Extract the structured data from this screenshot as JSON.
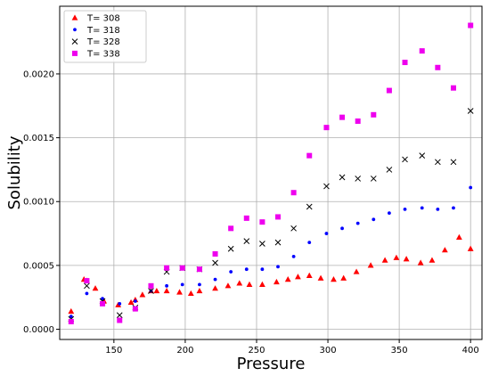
{
  "chart_data": {
    "type": "scatter",
    "title": "",
    "xlabel": "Pressure",
    "ylabel": "Solubility",
    "xlim": [
      112,
      408
    ],
    "ylim": [
      -8e-05,
      0.00253
    ],
    "xticks": [
      150,
      200,
      250,
      300,
      350,
      400
    ],
    "xtick_labels": [
      "150",
      "200",
      "250",
      "300",
      "350",
      "400"
    ],
    "yticks": [
      0.0,
      0.0005,
      0.001,
      0.0015,
      0.002
    ],
    "ytick_labels": [
      "0.0000",
      "0.0005",
      "0.0010",
      "0.0015",
      "0.0020"
    ],
    "grid": true,
    "legend_position": "top-left",
    "series": [
      {
        "name": "T= 308",
        "marker": "triangle",
        "color": "#ff0000",
        "points": [
          [
            120,
            0.00014
          ],
          [
            129,
            0.00039
          ],
          [
            131,
            0.00038
          ],
          [
            137,
            0.00032
          ],
          [
            143,
            0.00022
          ],
          [
            153,
            0.00019
          ],
          [
            162,
            0.00021
          ],
          [
            165,
            0.00023
          ],
          [
            170,
            0.00027
          ],
          [
            176,
            0.0003
          ],
          [
            180,
            0.0003
          ],
          [
            187,
            0.0003
          ],
          [
            196,
            0.00029
          ],
          [
            204,
            0.00028
          ],
          [
            210,
            0.0003
          ],
          [
            221,
            0.00032
          ],
          [
            230,
            0.00034
          ],
          [
            238,
            0.00036
          ],
          [
            245,
            0.00035
          ],
          [
            254,
            0.00035
          ],
          [
            264,
            0.00037
          ],
          [
            272,
            0.00039
          ],
          [
            279,
            0.00041
          ],
          [
            287,
            0.00042
          ],
          [
            295,
            0.0004
          ],
          [
            304,
            0.00039
          ],
          [
            311,
            0.0004
          ],
          [
            320,
            0.00045
          ],
          [
            330,
            0.0005
          ],
          [
            340,
            0.00054
          ],
          [
            348,
            0.00056
          ],
          [
            355,
            0.00055
          ],
          [
            365,
            0.00052
          ],
          [
            373,
            0.00054
          ],
          [
            382,
            0.00062
          ],
          [
            392,
            0.00072
          ],
          [
            400,
            0.00063
          ]
        ]
      },
      {
        "name": "T= 318",
        "marker": "dot",
        "color": "#0000ff",
        "points": [
          [
            120,
            0.0001
          ],
          [
            131,
            0.00028
          ],
          [
            142,
            0.00024
          ],
          [
            154,
            0.0002
          ],
          [
            165,
            0.00022
          ],
          [
            176,
            0.0003
          ],
          [
            187,
            0.00034
          ],
          [
            198,
            0.00035
          ],
          [
            210,
            0.00035
          ],
          [
            221,
            0.00039
          ],
          [
            232,
            0.00045
          ],
          [
            243,
            0.00047
          ],
          [
            254,
            0.00047
          ],
          [
            265,
            0.00049
          ],
          [
            276,
            0.00057
          ],
          [
            287,
            0.00068
          ],
          [
            299,
            0.00075
          ],
          [
            310,
            0.00079
          ],
          [
            321,
            0.00083
          ],
          [
            332,
            0.00086
          ],
          [
            343,
            0.00091
          ],
          [
            354,
            0.00094
          ],
          [
            366,
            0.00095
          ],
          [
            377,
            0.00094
          ],
          [
            388,
            0.00095
          ],
          [
            400,
            0.00111
          ]
        ]
      },
      {
        "name": "T= 328",
        "marker": "x",
        "color": "#000000",
        "points": [
          [
            120,
            8e-05
          ],
          [
            131,
            0.00034
          ],
          [
            142,
            0.00022
          ],
          [
            154,
            0.00011
          ],
          [
            165,
            0.00017
          ],
          [
            176,
            0.0003
          ],
          [
            187,
            0.00045
          ],
          [
            198,
            0.00048
          ],
          [
            210,
            0.00047
          ],
          [
            221,
            0.00052
          ],
          [
            232,
            0.00063
          ],
          [
            243,
            0.00069
          ],
          [
            254,
            0.00067
          ],
          [
            265,
            0.00068
          ],
          [
            276,
            0.00079
          ],
          [
            287,
            0.00096
          ],
          [
            299,
            0.00112
          ],
          [
            310,
            0.00119
          ],
          [
            321,
            0.00118
          ],
          [
            332,
            0.00118
          ],
          [
            343,
            0.00125
          ],
          [
            354,
            0.00133
          ],
          [
            366,
            0.00136
          ],
          [
            377,
            0.00131
          ],
          [
            388,
            0.00131
          ],
          [
            400,
            0.00171
          ]
        ]
      },
      {
        "name": "T= 338",
        "marker": "square",
        "color": "#ee00ee",
        "points": [
          [
            120,
            6e-05
          ],
          [
            131,
            0.00038
          ],
          [
            142,
            0.0002
          ],
          [
            154,
            7e-05
          ],
          [
            165,
            0.00016
          ],
          [
            176,
            0.00034
          ],
          [
            187,
            0.00048
          ],
          [
            198,
            0.00048
          ],
          [
            210,
            0.00047
          ],
          [
            221,
            0.00059
          ],
          [
            232,
            0.00079
          ],
          [
            243,
            0.00087
          ],
          [
            254,
            0.00084
          ],
          [
            265,
            0.00088
          ],
          [
            276,
            0.00107
          ],
          [
            287,
            0.00136
          ],
          [
            299,
            0.00158
          ],
          [
            310,
            0.00166
          ],
          [
            321,
            0.00163
          ],
          [
            332,
            0.00168
          ],
          [
            343,
            0.00187
          ],
          [
            354,
            0.00209
          ],
          [
            366,
            0.00218
          ],
          [
            377,
            0.00205
          ],
          [
            388,
            0.00189
          ],
          [
            400,
            0.00238
          ]
        ]
      }
    ]
  }
}
